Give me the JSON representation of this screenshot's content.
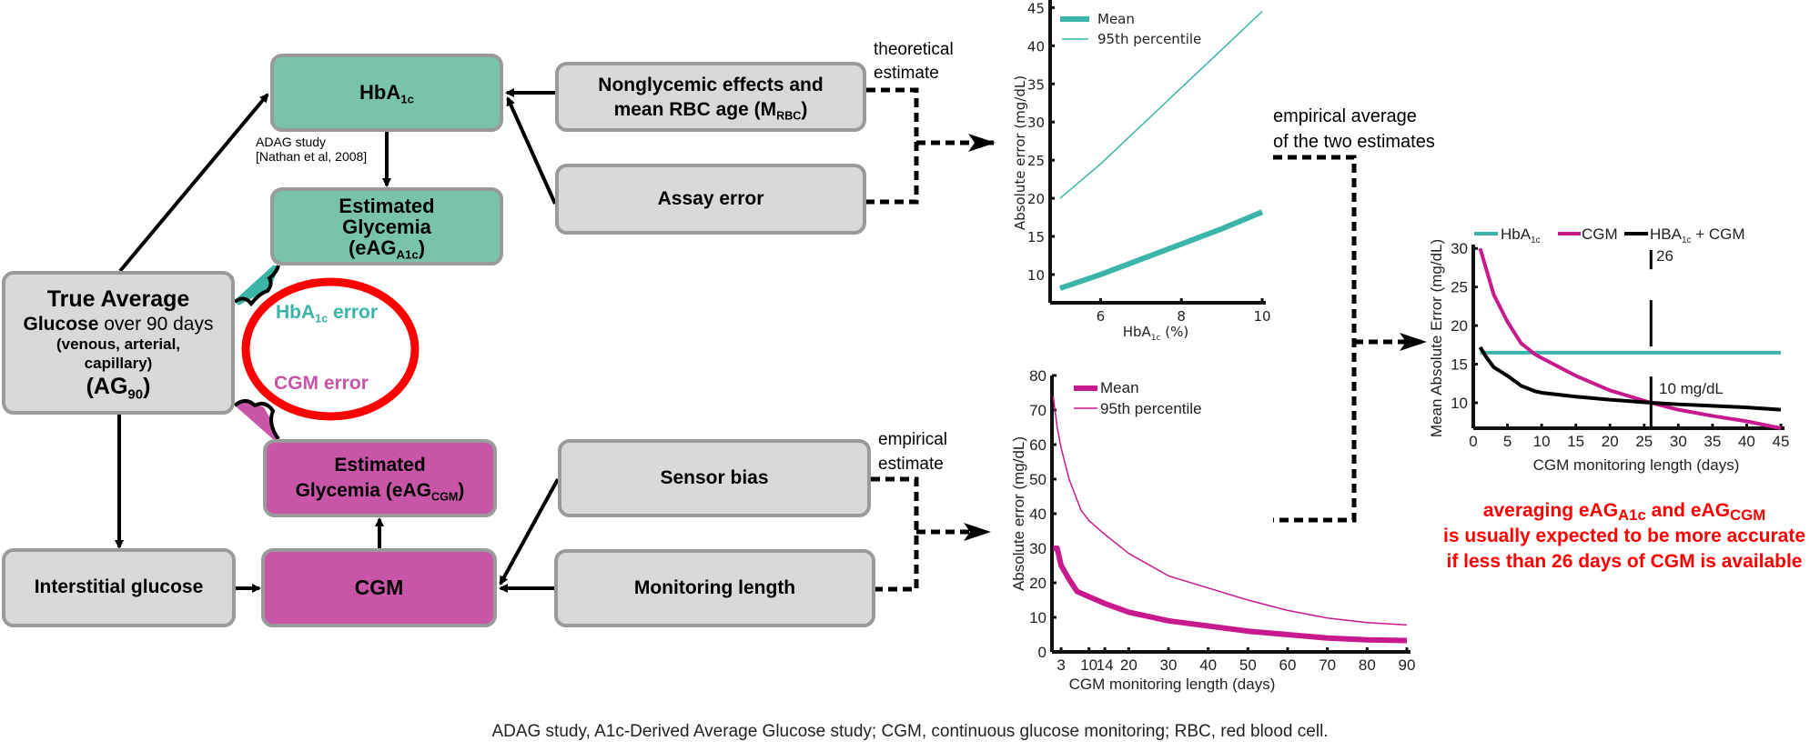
{
  "diagram": {
    "hba1c_box": {
      "main": "HbA",
      "sub": "1c"
    },
    "eag_a1c_box": {
      "line1": "Estimated",
      "line2": "Glycemia",
      "line3_main": "(eAG",
      "line3_sub": "A1c",
      "line3_end": ")"
    },
    "adag_note": {
      "line1": "ADAG study",
      "line2": "[Nathan et al, 2008]"
    },
    "true_avg_box": {
      "line1": "True Average",
      "line2_bold": "Glucose",
      "line2_rest": " over 90 days",
      "line3": "(venous, arterial,",
      "line4": "capillary)",
      "line5_main": "(AG",
      "line5_sub": "90",
      "line5_end": ")"
    },
    "error_circle": {
      "hba1c_main": "HbA",
      "hba1c_sub": "1c",
      "hba1c_rest": " error",
      "cgm": "CGM error"
    },
    "nonglycemic_box": {
      "line1": "Nonglycemic effects and",
      "line2_main": "mean RBC age (M",
      "line2_sub": "RBC",
      "line2_end": ")"
    },
    "assay_box": "Assay error",
    "theoretical_label": {
      "line1": "theoretical",
      "line2": "estimate"
    },
    "eag_cgm_box": {
      "line1": "Estimated",
      "line2_main": "Glycemia (eAG",
      "line2_sub": "CGM",
      "line2_end": ")"
    },
    "interstitial_box": "Interstitial glucose",
    "cgm_box": "CGM",
    "sensor_box": "Sensor bias",
    "monitoring_box": "Monitoring length",
    "empirical_label": {
      "line1": "empirical",
      "line2": "estimate"
    },
    "average_label": {
      "line1": "empirical average",
      "line2": "of the two estimates"
    },
    "conclusion": {
      "l1a": "averaging eAG",
      "l1s1": "A1c",
      "l1b": " and eAG",
      "l1s2": "CGM",
      "line2": "is usually expected to be more accurate",
      "line3": "if less than 26 days of CGM is available"
    },
    "caption": "ADAG study, A1c-Derived Average Glucose study; CGM, continuous glucose monitoring; RBC, red blood cell."
  },
  "colors": {
    "teal_box": "#79c4a8",
    "pink_box": "#c855a8",
    "gray_box": "#d9d9d9",
    "teal_line": "#3bb5a7",
    "magenta_line": "#c8198f",
    "circle": "#ff0000",
    "hba1c_error_text": "#3bb5a7",
    "cgm_error_text": "#c855a8",
    "conclusion_text": "#ff0000"
  },
  "chart_data": [
    {
      "type": "line",
      "xlabel_main": "HbA",
      "xlabel_sub": "1c",
      "xlabel_end": " (%)",
      "ylabel": "Absolute error (mg/dL)",
      "xlim": [
        5,
        10
      ],
      "ylim": [
        6.3,
        46
      ],
      "xticks": [
        6,
        8,
        10
      ],
      "yticks": [
        10,
        15,
        20,
        25,
        30,
        35,
        40,
        45
      ],
      "legend": "top-left",
      "series": [
        {
          "name": "Mean",
          "color": "#3bb5a7",
          "x": [
            5,
            6,
            7,
            8,
            9,
            10
          ],
          "y": [
            8.2,
            10,
            12,
            14,
            16,
            18.2
          ]
        },
        {
          "name": "95th percentile",
          "color": "#3bb5a7",
          "x": [
            5,
            6,
            7,
            8,
            9,
            10
          ],
          "y": [
            20,
            24.5,
            29.5,
            34.5,
            39.5,
            44.5
          ]
        }
      ]
    },
    {
      "type": "line",
      "xlabel": "CGM monitoring length (days)",
      "ylabel": "Absolute error (mg/dL)",
      "xlim": [
        0,
        90
      ],
      "ylim": [
        0,
        80
      ],
      "xticks": [
        3,
        10,
        14,
        20,
        30,
        40,
        50,
        60,
        70,
        80,
        90
      ],
      "yticks": [
        0,
        10,
        20,
        30,
        40,
        50,
        60,
        70,
        80
      ],
      "legend": "top-left",
      "series": [
        {
          "name": "Mean",
          "color": "#c8198f",
          "x": [
            1,
            2,
            3,
            5,
            7,
            10,
            14,
            20,
            30,
            40,
            50,
            60,
            70,
            80,
            90
          ],
          "y": [
            30,
            30,
            25,
            21,
            17.5,
            16,
            14,
            11.5,
            9,
            7.5,
            6,
            5,
            4,
            3.5,
            3.3
          ]
        },
        {
          "name": "95th percentile",
          "color": "#c8198f",
          "x": [
            1,
            2,
            3,
            5,
            8,
            10,
            14,
            20,
            30,
            40,
            50,
            60,
            70,
            80,
            90
          ],
          "y": [
            74,
            65,
            59,
            50,
            41,
            38,
            34,
            28.5,
            22,
            18.5,
            15,
            12,
            9.8,
            8.5,
            7.8
          ]
        }
      ]
    },
    {
      "type": "line",
      "xlabel": "CGM monitoring length (days)",
      "ylabel": "Mean Absolute Error (mg/dL)",
      "xlim": [
        0,
        45
      ],
      "ylim": [
        6.7,
        30.5
      ],
      "xticks": [
        0,
        5,
        10,
        15,
        20,
        25,
        30,
        35,
        40,
        45
      ],
      "yticks": [
        10,
        15,
        20,
        25,
        30
      ],
      "legend": "top",
      "series": [
        {
          "name_main": "HbA",
          "name_sub": "1c",
          "name_end": "",
          "color": "#3bb5a7",
          "x": [
            1,
            45
          ],
          "y": [
            16.5,
            16.5
          ]
        },
        {
          "name_main": "CGM",
          "name_sub": "",
          "name_end": "",
          "color": "#c8198f",
          "x": [
            1,
            2,
            3,
            5,
            7,
            9,
            10,
            15,
            20,
            26,
            30,
            35,
            40,
            45
          ],
          "y": [
            30,
            27,
            24,
            20.5,
            17.7,
            16.3,
            15.8,
            13.5,
            11.6,
            10,
            9.1,
            8.3,
            7.6,
            6.7
          ]
        },
        {
          "name_main": "HBA",
          "name_sub": "1c",
          "name_end": " + CGM",
          "color": "#000000",
          "x": [
            1,
            2,
            3,
            5,
            7,
            9,
            10,
            15,
            20,
            26,
            30,
            35,
            40,
            45
          ],
          "y": [
            17.2,
            15.8,
            14.6,
            13.5,
            12.2,
            11.5,
            11.3,
            10.8,
            10.4,
            10,
            9.8,
            9.6,
            9.4,
            9.1
          ]
        }
      ],
      "reference_x": 26,
      "annotations": {
        "x_label": "26",
        "y_label": "10 mg/dL"
      }
    }
  ]
}
